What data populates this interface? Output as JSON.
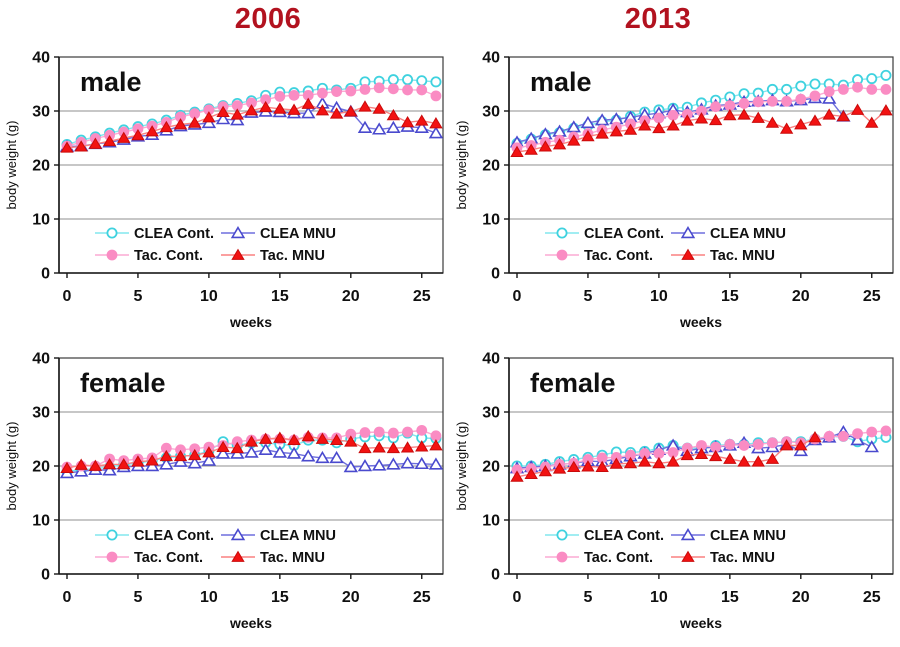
{
  "groups": [
    {
      "title": "2006"
    },
    {
      "title": "2013"
    }
  ],
  "style": {
    "background": "#ffffff",
    "title_color": "#b2121f",
    "grid_color": "#8f8f8f",
    "frame_color": "#3b3b3b",
    "axis_color": "#161616",
    "text_color": "#101010"
  },
  "axes": {
    "xlabel": "weeks",
    "ylabel": "body weight (g)",
    "xlim": [
      0,
      26
    ],
    "ylim": [
      0,
      40
    ],
    "xticks": [
      0,
      5,
      10,
      15,
      20,
      25
    ],
    "yticks": [
      0,
      10,
      20,
      30,
      40
    ],
    "grid": "horizontal",
    "legend_position": "inside-bottom-left"
  },
  "chart_data": [
    {
      "type": "line",
      "group": "2006",
      "panel": "male",
      "x": [
        0,
        1,
        2,
        3,
        4,
        5,
        6,
        7,
        8,
        9,
        10,
        11,
        12,
        13,
        14,
        15,
        16,
        17,
        18,
        19,
        20,
        21,
        22,
        23,
        24,
        25,
        26
      ],
      "series": [
        {
          "name": "CLEA Cont.",
          "marker": "circle-open",
          "color": "#3fd2df",
          "line_color": "#82e7ee",
          "values": [
            23.8,
            24.6,
            25.2,
            25.9,
            26.5,
            27.1,
            27.6,
            28.3,
            29.2,
            29.8,
            30.4,
            31.0,
            31.4,
            31.9,
            32.9,
            33.5,
            33.4,
            33.7,
            34.2,
            33.9,
            34.2,
            35.4,
            35.5,
            35.8,
            35.8,
            35.6,
            35.4
          ]
        },
        {
          "name": "CLEA MNU",
          "marker": "triangle-open",
          "color": "#4a4ace",
          "line_color": "#6f6fdd",
          "values": [
            23.4,
            23.5,
            23.9,
            24.2,
            24.7,
            25.3,
            25.6,
            26.4,
            27.2,
            27.5,
            27.8,
            28.5,
            28.3,
            29.7,
            29.9,
            29.8,
            29.6,
            29.6,
            31.4,
            30.6,
            29.9,
            26.9,
            26.6,
            26.9,
            27.1,
            26.9,
            25.9
          ]
        },
        {
          "name": "Tac. Cont.",
          "marker": "circle-filled",
          "color": "#fa8cc3",
          "line_color": "#fbaad4",
          "values": [
            23.5,
            24.2,
            24.9,
            25.5,
            26.1,
            26.7,
            27.2,
            27.9,
            28.9,
            29.5,
            30.2,
            30.8,
            31.0,
            31.5,
            32.1,
            32.7,
            32.9,
            32.9,
            33.3,
            33.6,
            33.7,
            34.0,
            34.3,
            34.1,
            33.9,
            33.9,
            32.8
          ]
        },
        {
          "name": "Tac. MNU",
          "marker": "triangle-filled",
          "color": "#f21212",
          "edge": "#c90b0b",
          "line_color": "#fa8080",
          "values": [
            23.2,
            23.4,
            23.9,
            24.4,
            25.0,
            25.5,
            26.2,
            27.0,
            27.5,
            27.8,
            28.8,
            29.8,
            29.3,
            30.1,
            30.7,
            30.4,
            30.2,
            31.3,
            30.1,
            29.5,
            29.9,
            30.8,
            30.4,
            29.2,
            27.9,
            28.2,
            27.7
          ]
        }
      ]
    },
    {
      "type": "line",
      "group": "2013",
      "panel": "male",
      "x": [
        0,
        1,
        2,
        3,
        4,
        5,
        6,
        7,
        8,
        9,
        10,
        11,
        12,
        13,
        14,
        15,
        16,
        17,
        18,
        19,
        20,
        21,
        22,
        23,
        24,
        25,
        26
      ],
      "series": [
        {
          "name": "CLEA Cont.",
          "marker": "circle-open",
          "color": "#3fd2df",
          "line_color": "#82e7ee",
          "values": [
            24.0,
            24.8,
            25.6,
            26.0,
            26.8,
            27.3,
            28.0,
            28.3,
            29.0,
            29.8,
            30.2,
            30.5,
            30.7,
            31.5,
            32.0,
            32.6,
            33.2,
            33.3,
            34.0,
            34.0,
            34.6,
            35.0,
            35.0,
            34.8,
            35.8,
            36.0,
            36.6
          ]
        },
        {
          "name": "CLEA MNU",
          "marker": "triangle-open",
          "color": "#4a4ace",
          "line_color": "#6f6fdd",
          "values": [
            24.2,
            24.9,
            25.7,
            26.2,
            27.0,
            27.8,
            28.3,
            28.5,
            28.8,
            29.3,
            29.6,
            30.2,
            29.8,
            30.3,
            31.0,
            31.2,
            31.7,
            31.8,
            32.0,
            31.8,
            32.0,
            32.4,
            32.3,
            29.0,
            null,
            null,
            null
          ]
        },
        {
          "name": "Tac. Cont.",
          "marker": "circle-filled",
          "color": "#fa8cc3",
          "line_color": "#fbaad4",
          "values": [
            23.2,
            23.6,
            24.2,
            24.6,
            25.2,
            25.8,
            26.5,
            27.0,
            27.6,
            28.2,
            28.7,
            29.2,
            29.4,
            30.0,
            30.8,
            31.0,
            31.4,
            31.7,
            31.8,
            31.8,
            32.2,
            32.8,
            33.6,
            34.0,
            34.4,
            34.0,
            34.0
          ]
        },
        {
          "name": "Tac. MNU",
          "marker": "triangle-filled",
          "color": "#f21212",
          "edge": "#c90b0b",
          "line_color": "#fa8080",
          "values": [
            22.4,
            22.8,
            23.4,
            23.8,
            24.5,
            25.3,
            25.8,
            26.2,
            26.5,
            27.3,
            26.8,
            27.3,
            28.2,
            28.6,
            28.3,
            29.2,
            29.3,
            28.7,
            27.8,
            26.7,
            27.5,
            28.2,
            29.3,
            29.0,
            30.2,
            27.8,
            30.1
          ]
        }
      ]
    },
    {
      "type": "line",
      "group": "2006",
      "panel": "female",
      "x": [
        0,
        1,
        2,
        3,
        4,
        5,
        6,
        7,
        8,
        9,
        10,
        11,
        12,
        13,
        14,
        15,
        16,
        17,
        18,
        19,
        20,
        21,
        22,
        23,
        24,
        25,
        26
      ],
      "series": [
        {
          "name": "CLEA Cont.",
          "marker": "circle-open",
          "color": "#3fd2df",
          "line_color": "#82e7ee",
          "values": [
            19.0,
            19.3,
            19.5,
            19.8,
            20.3,
            20.5,
            21.0,
            21.5,
            21.8,
            22.0,
            22.8,
            24.5,
            23.8,
            24.3,
            24.3,
            24.0,
            23.8,
            24.8,
            24.8,
            24.3,
            25.0,
            25.4,
            25.6,
            25.2,
            26.1,
            25.2,
            25.1
          ]
        },
        {
          "name": "CLEA MNU",
          "marker": "triangle-open",
          "color": "#4a4ace",
          "line_color": "#6f6fdd",
          "values": [
            18.7,
            19.0,
            19.3,
            19.2,
            19.8,
            20.0,
            20.0,
            20.3,
            20.8,
            20.5,
            21.0,
            22.3,
            22.3,
            22.5,
            23.0,
            22.5,
            22.3,
            21.8,
            21.5,
            21.5,
            19.8,
            20.0,
            20.1,
            20.3,
            20.5,
            20.4,
            20.3
          ]
        },
        {
          "name": "Tac. Cont.",
          "marker": "circle-filled",
          "color": "#fa8cc3",
          "line_color": "#fbaad4",
          "values": [
            19.8,
            20.0,
            20.0,
            21.3,
            21.0,
            21.3,
            21.5,
            23.3,
            23.0,
            23.2,
            23.5,
            23.8,
            24.5,
            24.8,
            25.0,
            25.0,
            24.8,
            25.3,
            25.2,
            25.2,
            25.9,
            26.2,
            26.3,
            26.1,
            26.3,
            26.6,
            25.6
          ]
        },
        {
          "name": "Tac. MNU",
          "marker": "triangle-filled",
          "color": "#f21212",
          "edge": "#c90b0b",
          "line_color": "#fa8080",
          "values": [
            19.6,
            20.2,
            20.0,
            20.3,
            20.3,
            20.8,
            21.0,
            21.8,
            21.8,
            22.0,
            22.5,
            23.5,
            23.3,
            24.5,
            25.0,
            25.2,
            24.8,
            25.5,
            25.0,
            24.8,
            24.5,
            23.3,
            23.4,
            23.3,
            23.4,
            23.6,
            23.8
          ]
        }
      ]
    },
    {
      "type": "line",
      "group": "2013",
      "panel": "female",
      "x": [
        0,
        1,
        2,
        3,
        4,
        5,
        6,
        7,
        8,
        9,
        10,
        11,
        12,
        13,
        14,
        15,
        16,
        17,
        18,
        19,
        20,
        21,
        22,
        23,
        24,
        25,
        26
      ],
      "series": [
        {
          "name": "CLEA Cont.",
          "marker": "circle-open",
          "color": "#3fd2df",
          "line_color": "#82e7ee",
          "values": [
            20.0,
            20.0,
            20.3,
            20.8,
            21.2,
            21.6,
            22.0,
            22.6,
            22.5,
            22.7,
            23.3,
            23.8,
            23.3,
            23.3,
            23.8,
            24.0,
            24.0,
            24.3,
            24.3,
            24.5,
            24.5,
            25.0,
            25.4,
            25.5,
            24.5,
            25.0,
            25.3
          ]
        },
        {
          "name": "CLEA MNU",
          "marker": "triangle-open",
          "color": "#4a4ace",
          "line_color": "#6f6fdd",
          "values": [
            19.6,
            19.8,
            20.0,
            20.3,
            20.5,
            20.9,
            20.8,
            21.3,
            21.8,
            22.3,
            23.0,
            23.8,
            22.8,
            23.3,
            23.5,
            23.8,
            24.3,
            23.3,
            23.5,
            24.0,
            22.8,
            24.8,
            25.3,
            26.3,
            24.8,
            23.5,
            null
          ]
        },
        {
          "name": "Tac. Cont.",
          "marker": "circle-filled",
          "color": "#fa8cc3",
          "line_color": "#fbaad4",
          "values": [
            19.3,
            19.5,
            19.8,
            20.3,
            20.5,
            21.2,
            21.5,
            21.6,
            22.0,
            22.3,
            22.3,
            22.5,
            23.3,
            23.8,
            23.5,
            24.0,
            23.8,
            24.0,
            24.3,
            24.5,
            24.3,
            25.0,
            25.5,
            25.5,
            26.0,
            26.3,
            26.5
          ]
        },
        {
          "name": "Tac. MNU",
          "marker": "triangle-filled",
          "color": "#f21212",
          "edge": "#c90b0b",
          "line_color": "#fa8080",
          "values": [
            18.0,
            18.5,
            19.0,
            19.5,
            19.8,
            19.9,
            19.8,
            20.4,
            20.5,
            20.8,
            20.5,
            20.8,
            22.0,
            22.2,
            21.8,
            21.3,
            20.8,
            20.8,
            21.3,
            23.8,
            23.8,
            25.3,
            null,
            null,
            null,
            null,
            null
          ]
        }
      ]
    }
  ]
}
